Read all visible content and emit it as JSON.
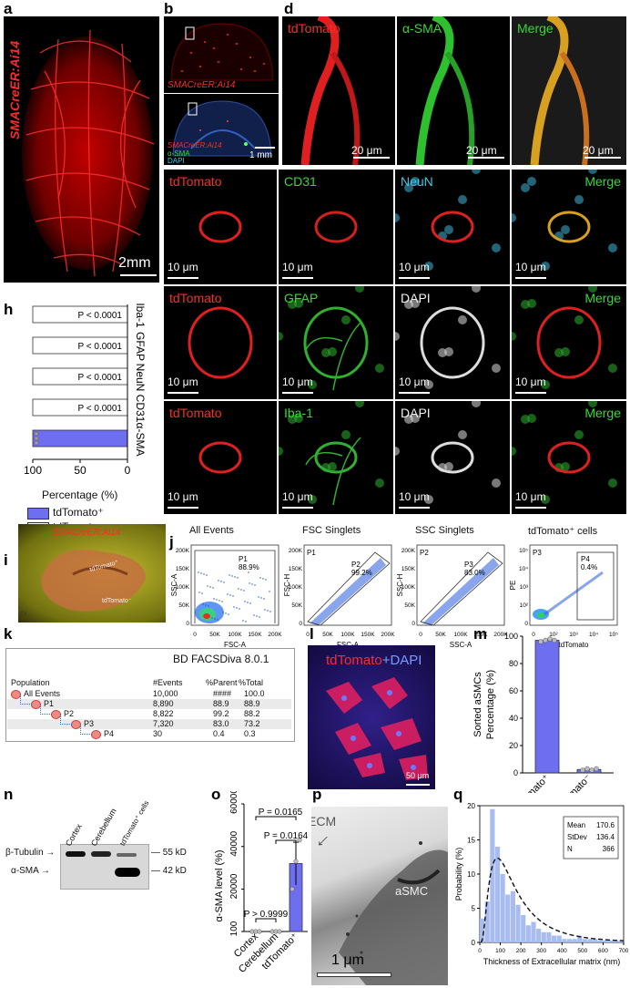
{
  "panels": {
    "a": {
      "letter": "a",
      "label": "SMACreER:Ai14",
      "scale": "2mm"
    },
    "b": {
      "letter": "b",
      "label": "SMACreER:Ai14"
    },
    "c": {
      "letter": "c",
      "label1": "SMACreER:Ai14",
      "label2": "α-SMA",
      "label3": "DAPI",
      "scale": "1 mm"
    },
    "d": {
      "letter": "d",
      "channels": [
        "tdTomato",
        "α-SMA",
        "Merge"
      ],
      "scale": "20 μm"
    },
    "e": {
      "letter": "e",
      "channels": [
        "tdTomato",
        "CD31",
        "NeuN",
        "Merge"
      ],
      "scale": "10 μm"
    },
    "f": {
      "letter": "f",
      "channels": [
        "tdTomato",
        "GFAP",
        "DAPI",
        "Merge"
      ],
      "scale": "10 μm"
    },
    "g": {
      "letter": "g",
      "channels": [
        "tdTomato",
        "Iba-1",
        "DAPI",
        "Merge"
      ],
      "scale": "10 μm"
    },
    "h": {
      "letter": "h",
      "xlabel": "Percentage (%)",
      "ticks": [
        "100",
        "50",
        "0"
      ],
      "legend_pos": "tdTomato⁺",
      "legend_neg": "tdTomato⁻"
    },
    "i": {
      "letter": "i",
      "label": "SMACreER:Ai14",
      "tag1": "tdTomato⁺",
      "tag2": "tdTomato⁻",
      "corner": "Cy"
    },
    "j": {
      "letter": "j",
      "plots": [
        {
          "title": "All Events",
          "xlabel": "FSC-A",
          "ylabel": "SSC-A",
          "gate": "P1",
          "pct": "88.9%",
          "yticks": [
            "200K",
            "150K",
            "100K",
            "50K",
            "0"
          ],
          "xticks": [
            "0",
            "50K",
            "100K",
            "150K",
            "200K"
          ]
        },
        {
          "title": "FSC Singlets",
          "xlabel": "FSC-A",
          "ylabel": "FSC-H",
          "gate_in": "P1",
          "gate": "P2",
          "pct": "99.2%",
          "yticks": [
            "200K",
            "150K",
            "100K",
            "50K",
            "0"
          ],
          "xticks": [
            "0",
            "50K",
            "100K",
            "150K",
            "200K"
          ]
        },
        {
          "title": "SSC Singlets",
          "xlabel": "SSC-A",
          "ylabel": "SSC-H",
          "gate_in": "P2",
          "gate": "P3",
          "pct": "83.0%",
          "yticks": [
            "200K",
            "150K",
            "100K",
            "50K",
            "0"
          ],
          "xticks": [
            "0",
            "50K",
            "100K",
            "150K",
            "200K"
          ]
        },
        {
          "title": "tdTomato⁺ cells",
          "xlabel": "tdTomato",
          "ylabel": "PE",
          "gate_in": "P3",
          "gate": "P4",
          "pct": "0.4%",
          "yticks": [
            "10⁵",
            "10⁴",
            "10³",
            "10²",
            "0"
          ],
          "xticks": [
            "0",
            "10²",
            "10³",
            "10⁴",
            "10⁵"
          ]
        }
      ]
    },
    "k": {
      "letter": "k",
      "software": "BD FACSDiva 8.0.1",
      "headers": [
        "Population",
        "#Events",
        "%Parent",
        "%Total"
      ],
      "rows": [
        {
          "name": "All Events",
          "events": "10,000",
          "parent": "####",
          "total": "100.0"
        },
        {
          "name": "P1",
          "events": "8,890",
          "parent": "88.9",
          "total": "88.9"
        },
        {
          "name": "P2",
          "events": "8,822",
          "parent": "99.2",
          "total": "88.2"
        },
        {
          "name": "P3",
          "events": "7,320",
          "parent": "83.0",
          "total": "73.2"
        },
        {
          "name": "P4",
          "events": "30",
          "parent": "0.4",
          "total": "0.3"
        }
      ]
    },
    "l": {
      "letter": "l",
      "label1": "tdTomato",
      "label2": "+DAPI",
      "scale": "50 μm"
    },
    "m": {
      "letter": "m",
      "ylabel1": "Sorted aSMCs",
      "ylabel2": "Percentage (%)"
    },
    "n": {
      "letter": "n",
      "lanes": [
        "Cortex",
        "Cerebellum",
        "tdTomato⁺ cells"
      ],
      "bands": [
        "β-Tubulin",
        "α-SMA"
      ],
      "sizes": [
        "55 kD",
        "42 kD"
      ]
    },
    "o": {
      "letter": "o",
      "ylabel": "α-SMA level (%)"
    },
    "p": {
      "letter": "p",
      "ecm": "ECM",
      "cell": "aSMC",
      "scale": "1 μm"
    },
    "q": {
      "letter": "q",
      "xlabel": "Thickness of Extracellular matrix (nm)",
      "ylabel": "Probability (%)",
      "stats": [
        {
          "k": "Mean",
          "v": "170.6"
        },
        {
          "k": "StDev",
          "v": "136.4"
        },
        {
          "k": "N",
          "v": "366"
        }
      ]
    }
  },
  "chart_data": [
    {
      "id": "h",
      "type": "bar",
      "orientation": "horizontal",
      "categories": [
        "Iba-1",
        "GFAP",
        "NeuN",
        "CD31",
        "α-SMA"
      ],
      "series": [
        {
          "name": "tdTomato⁺",
          "values": [
            0,
            0,
            0,
            0,
            100
          ]
        },
        {
          "name": "tdTomato⁻",
          "values": [
            100,
            100,
            100,
            100,
            0
          ]
        }
      ],
      "annotations": [
        "P < 0.0001",
        "P < 0.0001",
        "P < 0.0001",
        "P < 0.0001"
      ],
      "xlim": [
        100,
        0
      ],
      "xlabel": "Percentage (%)",
      "legend": "bottom"
    },
    {
      "id": "m",
      "type": "bar",
      "categories": [
        "tdTomato⁺",
        "tdTomato⁻"
      ],
      "values": [
        97,
        2.5
      ],
      "points": [
        [
          96,
          97,
          98,
          97
        ],
        [
          2,
          3,
          2,
          3
        ]
      ],
      "ylim": [
        0,
        100
      ],
      "yticks": [
        0,
        20,
        40,
        60,
        80,
        100
      ],
      "ylabel": "Sorted aSMCs Percentage (%)"
    },
    {
      "id": "o",
      "type": "bar",
      "categories": [
        "Cortex",
        "Cerebellum",
        "tdTomato⁺"
      ],
      "values": [
        100,
        100,
        32000
      ],
      "errors": [
        0,
        0,
        10000
      ],
      "points": [
        [
          100,
          100,
          100
        ],
        [
          100,
          100,
          100
        ],
        [
          20000,
          33000,
          43000
        ]
      ],
      "ylim": [
        100,
        60000
      ],
      "yticks": [
        100,
        20000,
        40000,
        60000
      ],
      "ylabel": "α-SMA level (%)",
      "annotations": [
        "P > 0.9999",
        "P = 0.0164",
        "P = 0.0165"
      ]
    },
    {
      "id": "q",
      "type": "bar",
      "subtype": "histogram",
      "x": [
        25,
        50,
        75,
        100,
        125,
        150,
        175,
        200,
        225,
        250,
        275,
        300,
        325,
        350,
        375,
        400,
        425,
        450,
        475,
        500,
        525,
        550,
        575,
        600,
        625,
        650,
        675,
        700
      ],
      "values": [
        3.5,
        6,
        19.5,
        14,
        10,
        7,
        7.5,
        5.5,
        4,
        2.5,
        3,
        2,
        1.5,
        1.5,
        1,
        1,
        0.5,
        0.5,
        0.5,
        1,
        0.5,
        0.5,
        0.5,
        0.3,
        0.3,
        0.3,
        0.3,
        0.3
      ],
      "fit": "lognormal (dashed)",
      "xlim": [
        0,
        700
      ],
      "ylim": [
        0,
        20
      ],
      "xticks": [
        0,
        100,
        200,
        300,
        400,
        500,
        600,
        700
      ],
      "yticks": [
        0,
        5,
        10,
        15,
        20
      ],
      "xlabel": "Thickness of Extracellular matrix (nm)",
      "ylabel": "Probability (%)"
    }
  ]
}
